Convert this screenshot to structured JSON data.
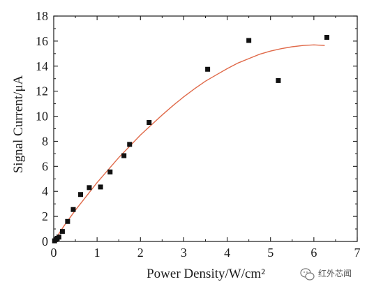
{
  "chart_data": {
    "type": "scatter",
    "xlabel": "Power Density/W/cm²",
    "ylabel": "Signal Current/μA",
    "xlim": [
      0,
      7
    ],
    "ylim": [
      0,
      18
    ],
    "x_ticks": [
      "0",
      "1",
      "2",
      "3",
      "4",
      "5",
      "6",
      "7"
    ],
    "y_ticks": [
      "0",
      "2",
      "4",
      "6",
      "8",
      "10",
      "12",
      "14",
      "16",
      "18"
    ],
    "grid": false,
    "legend": "none",
    "series": [
      {
        "marker": "square",
        "color": "#111111",
        "points": [
          {
            "x": 0.02,
            "y": 0.05
          },
          {
            "x": 0.05,
            "y": 0.15
          },
          {
            "x": 0.08,
            "y": 0.25
          },
          {
            "x": 0.12,
            "y": 0.35
          },
          {
            "x": 0.2,
            "y": 0.8
          },
          {
            "x": 0.32,
            "y": 1.6
          },
          {
            "x": 0.45,
            "y": 2.55
          },
          {
            "x": 0.62,
            "y": 3.75
          },
          {
            "x": 0.82,
            "y": 4.3
          },
          {
            "x": 1.08,
            "y": 4.35
          },
          {
            "x": 1.3,
            "y": 5.55
          },
          {
            "x": 1.62,
            "y": 6.85
          },
          {
            "x": 1.75,
            "y": 7.75
          },
          {
            "x": 2.2,
            "y": 9.5
          },
          {
            "x": 3.55,
            "y": 13.75
          },
          {
            "x": 4.5,
            "y": 16.05
          },
          {
            "x": 5.18,
            "y": 12.85
          },
          {
            "x": 6.3,
            "y": 16.3
          }
        ]
      }
    ],
    "fit_curve": {
      "type": "line",
      "color": "#e06a4a",
      "x": [
        0,
        0.25,
        0.5,
        0.75,
        1.0,
        1.25,
        1.5,
        1.75,
        2.0,
        2.25,
        2.5,
        2.75,
        3.0,
        3.25,
        3.5,
        3.75,
        4.0,
        4.25,
        4.5,
        4.75,
        5.0,
        5.25,
        5.5,
        5.75,
        6.0,
        6.25
      ],
      "y": [
        0,
        1.3,
        2.5,
        3.6,
        4.7,
        5.7,
        6.7,
        7.6,
        8.5,
        9.3,
        10.1,
        10.85,
        11.55,
        12.2,
        12.8,
        13.3,
        13.8,
        14.25,
        14.6,
        14.95,
        15.2,
        15.4,
        15.55,
        15.65,
        15.7,
        15.65
      ]
    }
  },
  "watermark": {
    "text": "红外芯闻",
    "icon": "wechat-icon"
  }
}
